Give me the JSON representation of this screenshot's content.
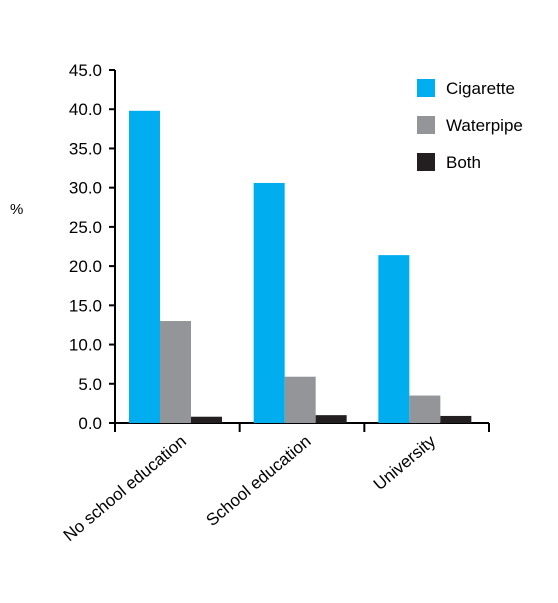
{
  "chart_data": {
    "type": "bar",
    "title": "",
    "xlabel": "",
    "ylabel": "%",
    "ylim": [
      0,
      45
    ],
    "yticks": [
      "0.0",
      "5.0",
      "10.0",
      "15.0",
      "20.0",
      "25.0",
      "30.0",
      "35.0",
      "40.0",
      "45.0"
    ],
    "categories": [
      "No school education",
      "School education",
      "University"
    ],
    "series": [
      {
        "name": "Cigarette",
        "values": [
          39.8,
          30.6,
          21.4
        ],
        "color": "#00ADEF"
      },
      {
        "name": "Waterpipe",
        "values": [
          13.0,
          5.9,
          3.5
        ],
        "color": "#939598"
      },
      {
        "name": "Both",
        "values": [
          0.8,
          1.0,
          0.9
        ],
        "color": "#231F20"
      }
    ],
    "grid": false,
    "legend": "top-right"
  }
}
